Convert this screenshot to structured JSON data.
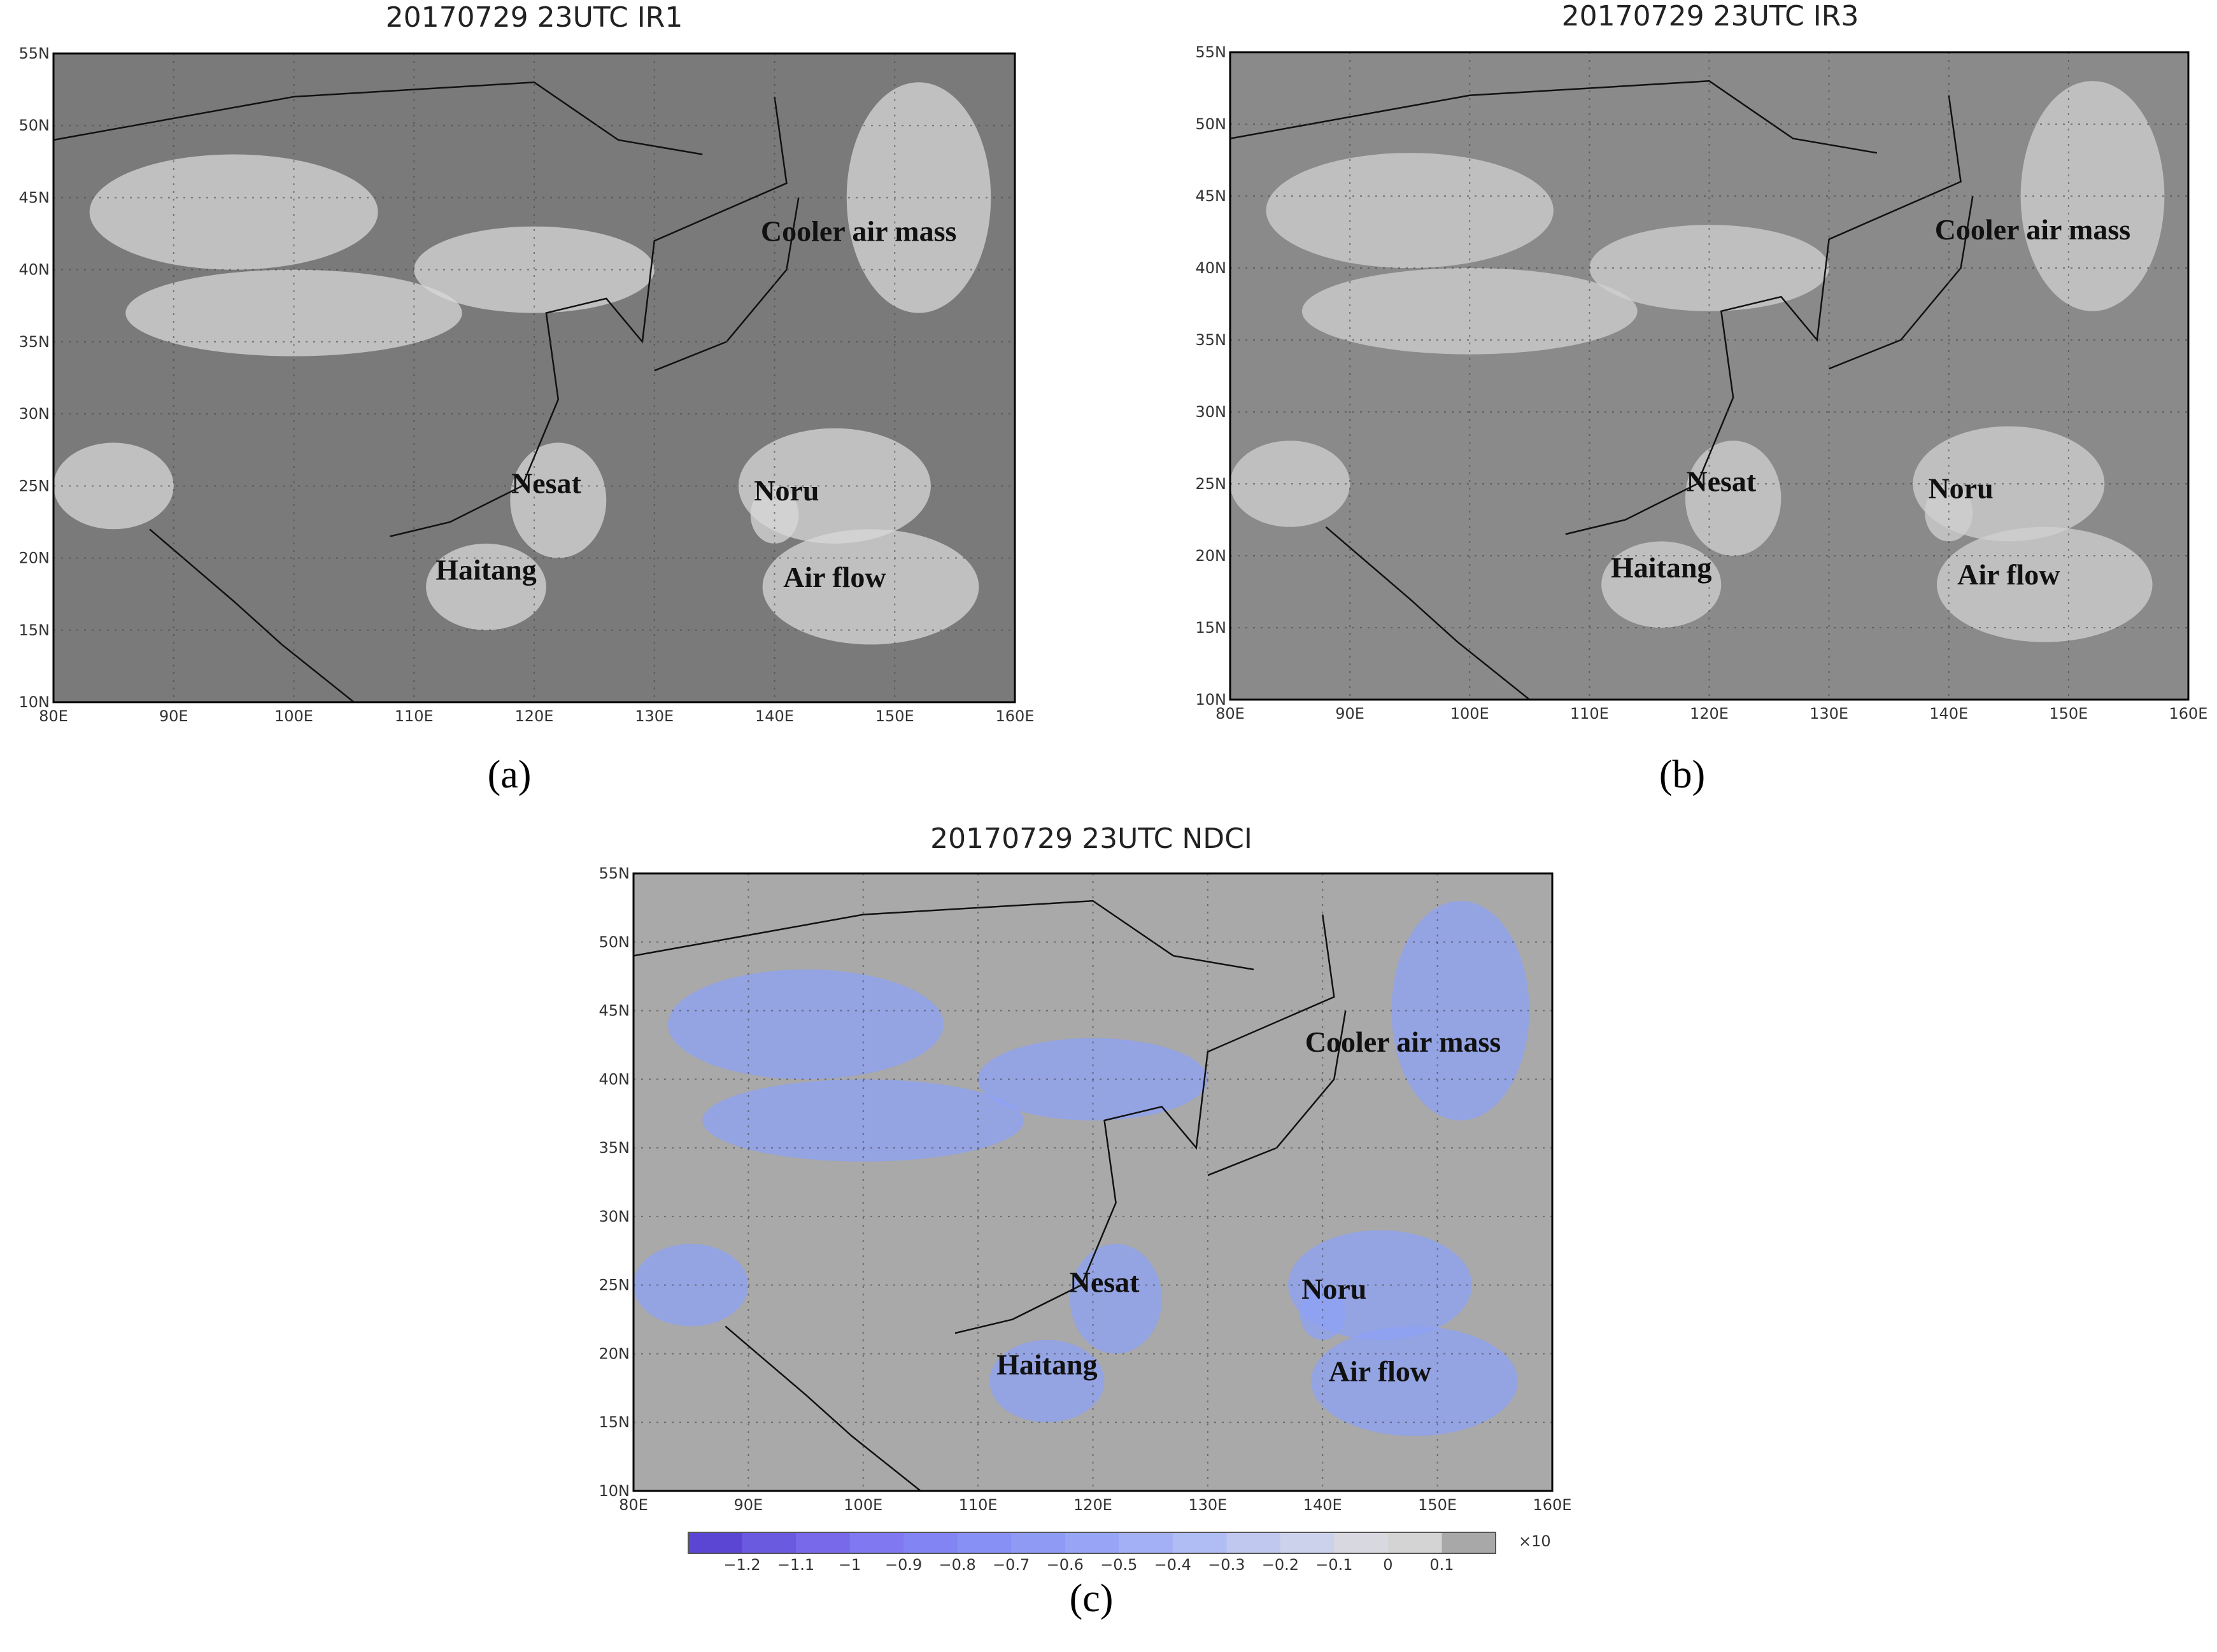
{
  "panels": [
    {
      "title": "20170729  23UTC  IR1",
      "caption": "(a)",
      "lat_labels": [
        "55N",
        "50N",
        "45N",
        "40N",
        "35N",
        "30N",
        "25N",
        "20N",
        "15N",
        "10N"
      ],
      "lon_labels": [
        "80E",
        "90E",
        "100E",
        "110E",
        "120E",
        "130E",
        "140E",
        "150E",
        "160E"
      ],
      "annotations": [
        "Cooler air mass",
        "Nesat",
        "Haitang",
        "Noru",
        "Air flow"
      ],
      "background": "#7a7a7a",
      "cloud_color": "#d8d8d8"
    },
    {
      "title": "20170729  23UTC  IR3",
      "caption": "(b)",
      "lat_labels": [
        "55N",
        "50N",
        "45N",
        "40N",
        "35N",
        "30N",
        "25N",
        "20N",
        "15N",
        "10N"
      ],
      "lon_labels": [
        "80E",
        "90E",
        "100E",
        "110E",
        "120E",
        "130E",
        "140E",
        "150E",
        "160E"
      ],
      "annotations": [
        "Cooler air mass",
        "Nesat",
        "Haitang",
        "Noru",
        "Air flow"
      ],
      "background": "#8a8a8a",
      "cloud_color": "#d0d0d0"
    },
    {
      "title": "20170729  23UTC  NDCI",
      "caption": "(c)",
      "lat_labels": [
        "55N",
        "50N",
        "45N",
        "40N",
        "35N",
        "30N",
        "25N",
        "20N",
        "15N",
        "10N"
      ],
      "lon_labels": [
        "80E",
        "90E",
        "100E",
        "110E",
        "120E",
        "130E",
        "140E",
        "150E",
        "160E"
      ],
      "annotations": [
        "Cooler air mass",
        "Nesat",
        "Haitang",
        "Noru",
        "Air flow"
      ],
      "background": "#a9a9a9",
      "cloud_color": "#8ea2f5",
      "colorbar": {
        "ticks": [
          "−1.2",
          "−1.1",
          "−1",
          "−0.9",
          "−0.8",
          "−0.7",
          "−0.6",
          "−0.5",
          "−0.4",
          "−0.3",
          "−0.2",
          "−0.1",
          "0",
          "0.1"
        ],
        "colors": [
          "#5a46d2",
          "#6a5ae0",
          "#7868ea",
          "#7f78f0",
          "#8284f3",
          "#8790f5",
          "#8f9af5",
          "#98a5f6",
          "#a3b0f6",
          "#b0bcf4",
          "#c0c8f0",
          "#cdd2ec",
          "#d8d8e0",
          "#d4d4d4",
          "#a8a8a8"
        ],
        "multiplier": "×10"
      }
    }
  ]
}
